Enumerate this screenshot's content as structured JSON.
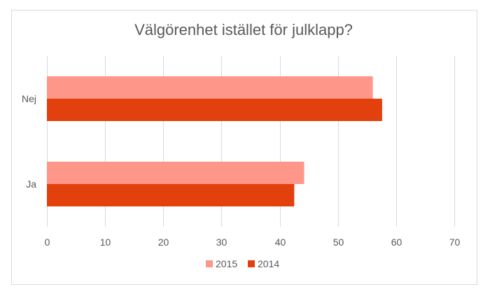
{
  "chart_data": {
    "type": "bar",
    "orientation": "horizontal",
    "title": "Välgörenhet istället för julklapp?",
    "categories": [
      "Nej",
      "Ja"
    ],
    "series": [
      {
        "name": "2015",
        "values": [
          56,
          44.2
        ],
        "color": "#ff968a"
      },
      {
        "name": "2014",
        "values": [
          57.6,
          42.5
        ],
        "color": "#e2400d"
      }
    ],
    "xlim": [
      0,
      70
    ],
    "xticks": [
      "0",
      "10",
      "20",
      "30",
      "40",
      "50",
      "60",
      "70"
    ],
    "grid": true,
    "legend_position": "bottom"
  }
}
